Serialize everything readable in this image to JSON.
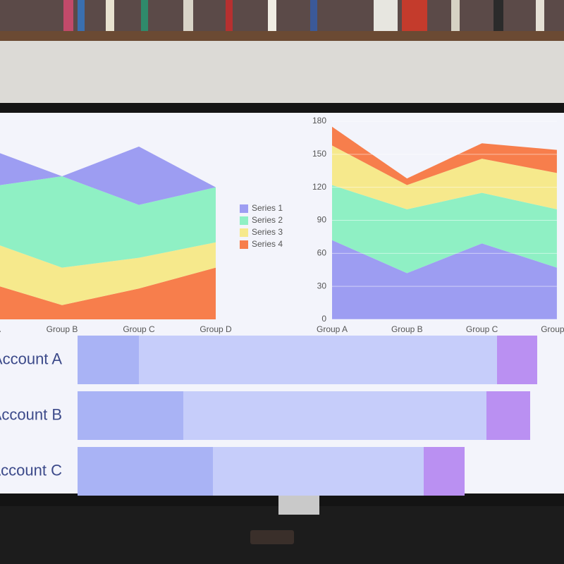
{
  "chart_data": [
    {
      "type": "area",
      "categories": [
        "Group A",
        "Group B",
        "Group C",
        "Group D"
      ],
      "stack": "top-down",
      "ylim": [
        0,
        180
      ],
      "series": [
        {
          "name": "Series 1",
          "color": "#9d9df2",
          "values": [
            36,
            0,
            53,
            0
          ]
        },
        {
          "name": "Series 2",
          "color": "#8ff0c4",
          "values": [
            48,
            83,
            48,
            50
          ]
        },
        {
          "name": "Series 3",
          "color": "#f6e98c",
          "values": [
            38,
            34,
            28,
            23
          ]
        },
        {
          "name": "Series 4",
          "color": "#f77e4c",
          "values": [
            34,
            13,
            28,
            47
          ]
        }
      ],
      "legend": "right"
    },
    {
      "type": "area",
      "categories": [
        "Group A",
        "Group B",
        "Group C",
        "Group D"
      ],
      "stack": "bottom-up",
      "ylim": [
        0,
        180
      ],
      "yticks": [
        0,
        30,
        60,
        90,
        120,
        150,
        180
      ],
      "grid": true,
      "series": [
        {
          "color": "#9d9df2",
          "values": [
            72,
            42,
            69,
            47
          ]
        },
        {
          "color": "#8ff0c4",
          "values": [
            50,
            58,
            46,
            53
          ]
        },
        {
          "color": "#f6e98c",
          "values": [
            36,
            22,
            31,
            33
          ]
        },
        {
          "color": "#f77e4c",
          "values": [
            17,
            6,
            14,
            21
          ]
        }
      ]
    },
    {
      "type": "hbar",
      "categories": [
        "Account A",
        "Account B",
        "Account C"
      ],
      "xlim": [
        0,
        690
      ],
      "series": [
        {
          "color": "#a9b3f5",
          "values": [
            87,
            150,
            192
          ]
        },
        {
          "color": "#c6cdfa",
          "values": [
            508,
            430,
            299
          ]
        },
        {
          "color": "#ba90f2",
          "values": [
            57,
            62,
            58
          ]
        }
      ]
    }
  ]
}
